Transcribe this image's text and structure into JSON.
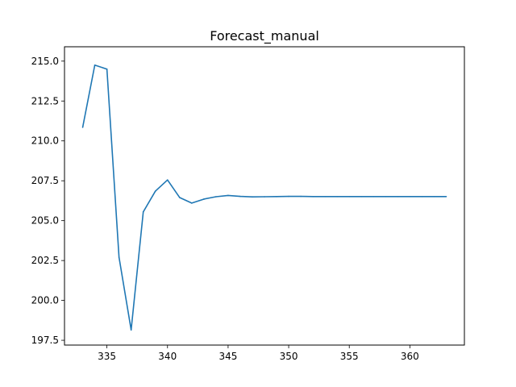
{
  "chart_data": {
    "type": "line",
    "title": "Forecast_manual",
    "xlabel": "",
    "ylabel": "",
    "xlim": [
      331.5,
      364.5
    ],
    "ylim": [
      197.2,
      215.9
    ],
    "xticks": [
      335,
      340,
      345,
      350,
      355,
      360
    ],
    "xtick_labels": [
      "335",
      "340",
      "345",
      "350",
      "355",
      "360"
    ],
    "yticks": [
      197.5,
      200.0,
      202.5,
      205.0,
      207.5,
      210.0,
      212.5,
      215.0
    ],
    "ytick_labels": [
      "197.5",
      "200.0",
      "202.5",
      "205.0",
      "207.5",
      "210.0",
      "212.5",
      "215.0"
    ],
    "grid": false,
    "legend": "none",
    "series": [
      {
        "color": "#1f77b4",
        "x": [
          333,
          334,
          335,
          336,
          337,
          338,
          339,
          340,
          341,
          342,
          343,
          344,
          345,
          346,
          347,
          348,
          349,
          350,
          351,
          352,
          353,
          354,
          355,
          356,
          357,
          358,
          359,
          360,
          361,
          362,
          363
        ],
        "y": [
          210.85,
          214.75,
          214.5,
          202.7,
          198.15,
          205.55,
          206.85,
          207.55,
          206.45,
          206.1,
          206.35,
          206.5,
          206.58,
          206.52,
          206.49,
          206.5,
          206.51,
          206.52,
          206.52,
          206.51,
          206.51,
          206.51,
          206.51,
          206.51,
          206.51,
          206.51,
          206.51,
          206.51,
          206.51,
          206.51,
          206.51
        ]
      }
    ]
  }
}
